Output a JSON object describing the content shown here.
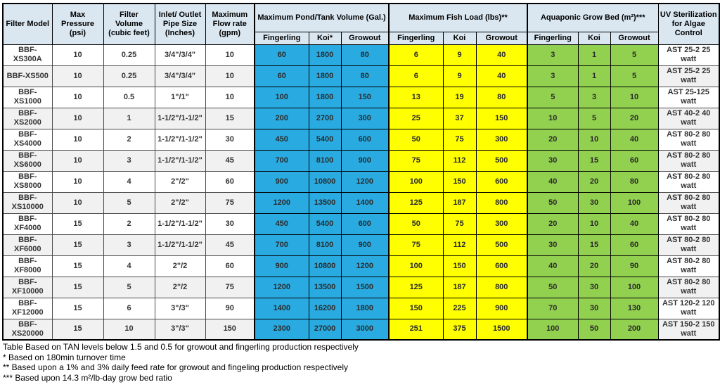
{
  "colors": {
    "header_bg": "#dae7f1",
    "pond_blue": "#29abe2",
    "fish_yellow": "#ffff00",
    "growbed_green": "#92d050",
    "row_alt": "#f1f1f1"
  },
  "table": {
    "simple_headers": [
      "Filter Model",
      "Max Pressure (psi)",
      "Filter Volume (cubic feet)",
      "Inlet/ Outlet Pipe Size (Inches)",
      "Maximum Flow rate (gpm)"
    ],
    "groups": [
      {
        "label": "Maximum Pond/Tank Volume (Gal.)",
        "color_key": "pond_blue",
        "subcols": [
          "Fingerling",
          "Koi*",
          "Growout"
        ]
      },
      {
        "label": "Maximum Fish Load (lbs)**",
        "color_key": "fish_yellow",
        "subcols": [
          "Fingerling",
          "Koi",
          "Growout"
        ]
      },
      {
        "label": "Aquaponic Grow Bed (m²)***",
        "color_key": "growbed_green",
        "subcols": [
          "Fingerling",
          "Koi",
          "Growout"
        ]
      }
    ],
    "uv_header": "UV Sterilization for Algae Control",
    "rows": [
      {
        "model": "BBF-XS300A",
        "psi": "10",
        "volume": "0.25",
        "pipe": "3/4\"/3/4\"",
        "flow": "10",
        "pond": [
          "60",
          "1800",
          "80"
        ],
        "fish": [
          "6",
          "9",
          "40"
        ],
        "growbed": [
          "3",
          "1",
          "5"
        ],
        "uv": "AST 25-2 25 watt"
      },
      {
        "model": "BBF-XS500",
        "psi": "10",
        "volume": "0.25",
        "pipe": "3/4\"/3/4\"",
        "flow": "10",
        "pond": [
          "60",
          "1800",
          "80"
        ],
        "fish": [
          "6",
          "9",
          "40"
        ],
        "growbed": [
          "3",
          "1",
          "5"
        ],
        "uv": "AST 25-2 25 watt"
      },
      {
        "model": "BBF-XS1000",
        "psi": "10",
        "volume": "0.5",
        "pipe": "1\"/1\"",
        "flow": "10",
        "pond": [
          "100",
          "1800",
          "150"
        ],
        "fish": [
          "13",
          "19",
          "80"
        ],
        "growbed": [
          "5",
          "3",
          "10"
        ],
        "uv": "AST 25-125 watt"
      },
      {
        "model": "BBF-XS2000",
        "psi": "10",
        "volume": "1",
        "pipe": "1-1/2\"/1-1/2\"",
        "flow": "15",
        "pond": [
          "200",
          "2700",
          "300"
        ],
        "fish": [
          "25",
          "37",
          "150"
        ],
        "growbed": [
          "10",
          "5",
          "20"
        ],
        "uv": "AST 40-2 40 watt"
      },
      {
        "model": "BBF-XS4000",
        "psi": "10",
        "volume": "2",
        "pipe": "1-1/2\"/1-1/2\"",
        "flow": "30",
        "pond": [
          "450",
          "5400",
          "600"
        ],
        "fish": [
          "50",
          "75",
          "300"
        ],
        "growbed": [
          "20",
          "10",
          "40"
        ],
        "uv": "AST 80-2 80 watt"
      },
      {
        "model": "BBF-XS6000",
        "psi": "10",
        "volume": "3",
        "pipe": "1-1/2\"/1-1/2\"",
        "flow": "45",
        "pond": [
          "700",
          "8100",
          "900"
        ],
        "fish": [
          "75",
          "112",
          "500"
        ],
        "growbed": [
          "30",
          "15",
          "60"
        ],
        "uv": "AST 80-2 80 watt"
      },
      {
        "model": "BBF-XS8000",
        "psi": "10",
        "volume": "4",
        "pipe": "2\"/2\"",
        "flow": "60",
        "pond": [
          "900",
          "10800",
          "1200"
        ],
        "fish": [
          "100",
          "150",
          "600"
        ],
        "growbed": [
          "40",
          "20",
          "80"
        ],
        "uv": "AST 80-2 80 watt"
      },
      {
        "model": "BBF- XS10000",
        "psi": "10",
        "volume": "5",
        "pipe": "2\"/2\"",
        "flow": "75",
        "pond": [
          "1200",
          "13500",
          "1400"
        ],
        "fish": [
          "125",
          "187",
          "800"
        ],
        "growbed": [
          "50",
          "30",
          "100"
        ],
        "uv": "AST 80-2 80 watt"
      },
      {
        "model": "BBF-XF4000",
        "psi": "15",
        "volume": "2",
        "pipe": "1-1/2\"/1-1/2\"",
        "flow": "30",
        "pond": [
          "450",
          "5400",
          "600"
        ],
        "fish": [
          "50",
          "75",
          "300"
        ],
        "growbed": [
          "20",
          "10",
          "40"
        ],
        "uv": "AST 80-2 80 watt"
      },
      {
        "model": "BBF-XF6000",
        "psi": "15",
        "volume": "3",
        "pipe": "1-1/2\"/1-1/2\"",
        "flow": "45",
        "pond": [
          "700",
          "8100",
          "900"
        ],
        "fish": [
          "75",
          "112",
          "500"
        ],
        "growbed": [
          "30",
          "15",
          "60"
        ],
        "uv": "AST 80-2 80 watt"
      },
      {
        "model": "BBF-XF8000",
        "psi": "15",
        "volume": "4",
        "pipe": "2\"/2",
        "flow": "60",
        "pond": [
          "900",
          "10800",
          "1200"
        ],
        "fish": [
          "100",
          "150",
          "600"
        ],
        "growbed": [
          "40",
          "20",
          "90"
        ],
        "uv": "AST 80-2 80 watt"
      },
      {
        "model": "BBF-XF10000",
        "psi": "15",
        "volume": "5",
        "pipe": "2\"/2",
        "flow": "75",
        "pond": [
          "1200",
          "13500",
          "1500"
        ],
        "fish": [
          "125",
          "187",
          "800"
        ],
        "growbed": [
          "50",
          "30",
          "100"
        ],
        "uv": "AST 80-2 80 watt"
      },
      {
        "model": "BBF-XF12000",
        "psi": "15",
        "volume": "6",
        "pipe": "3\"/3\"",
        "flow": "90",
        "pond": [
          "1400",
          "16200",
          "1800"
        ],
        "fish": [
          "150",
          "225",
          "900"
        ],
        "growbed": [
          "70",
          "30",
          "130"
        ],
        "uv": "AST 120-2 120 watt"
      },
      {
        "model": "BBF- XS20000",
        "psi": "15",
        "volume": "10",
        "pipe": "3\"/3\"",
        "flow": "150",
        "pond": [
          "2300",
          "27000",
          "3000"
        ],
        "fish": [
          "251",
          "375",
          "1500"
        ],
        "growbed": [
          "100",
          "50",
          "200"
        ],
        "uv": "AST 150-2 150 watt"
      }
    ]
  },
  "notes": [
    "Table Based on TAN levels below 1.5 and 0.5 for growout and fingerling production respectively",
    "* Based on 180min turnover time",
    "** Based upon a 1% and 3% daily feed rate for growout and fingeling production respectively",
    "*** Based upon 14.3 m²/lb-day grow bed ratio"
  ]
}
